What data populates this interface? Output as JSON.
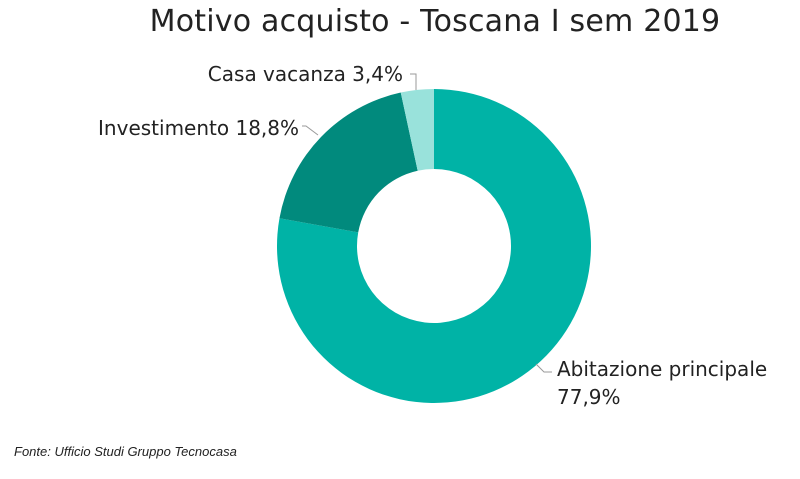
{
  "chart_data": {
    "type": "pie",
    "title": "Motivo acquisto - Toscana I sem 2019",
    "donut": true,
    "slices": [
      {
        "label": "Abitazione principale",
        "percent_label": "77,9%",
        "value": 77.9,
        "color": "#00B3A6"
      },
      {
        "label": "Investimento",
        "percent_label": "18,8%",
        "value": 18.8,
        "color": "#018A7D"
      },
      {
        "label": "Casa vacanza",
        "percent_label": "3,4%",
        "value": 3.4,
        "color": "#99E2DB"
      }
    ],
    "legend": "none"
  },
  "footer": {
    "source": "Fonte: Ufficio Studi Gruppo Tecnocasa"
  }
}
